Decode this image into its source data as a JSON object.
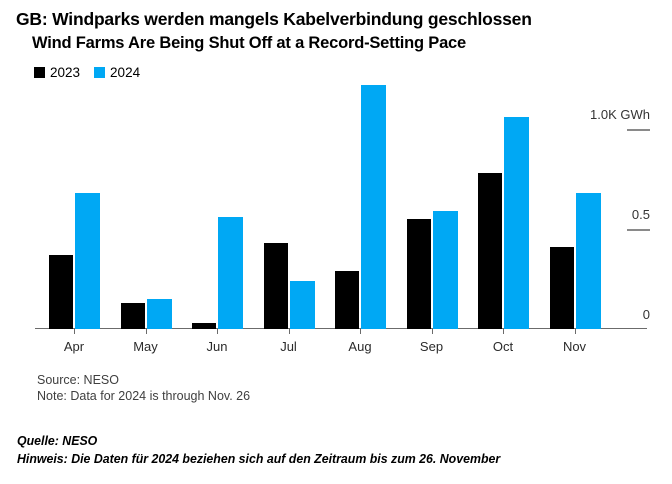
{
  "chart_data": {
    "type": "bar",
    "title": "GB: Windparks werden mangels Kabelverbindung geschlossen",
    "subtitle": "Wind Farms Are Being Shut Off at a Record-Setting Pace",
    "categories": [
      "Apr",
      "May",
      "Jun",
      "Jul",
      "Aug",
      "Sep",
      "Oct",
      "Nov"
    ],
    "series": [
      {
        "name": "2023",
        "color": "#000000",
        "values": [
          0.37,
          0.13,
          0.03,
          0.43,
          0.29,
          0.55,
          0.78,
          0.41
        ]
      },
      {
        "name": "2024",
        "color": "#00a8f4",
        "values": [
          0.68,
          0.15,
          0.56,
          0.24,
          1.22,
          0.59,
          1.06,
          0.68
        ]
      }
    ],
    "unit": "K GWh",
    "ylabel": "",
    "xlabel": "",
    "ylim": [
      0,
      1.25
    ],
    "y_ticks": [
      {
        "label": "1.0K GWh",
        "value": 1.0
      },
      {
        "label": "0.5",
        "value": 0.5
      },
      {
        "label": "0",
        "value": 0
      }
    ],
    "legend_position": "top-left",
    "grid": false,
    "axis_side": "right"
  },
  "notes": {
    "source": "Source: NESO",
    "note": "Note: Data for 2024 is through Nov. 26",
    "quelle": "Quelle: NESO",
    "hinweis": "Hinweis: Die Daten für 2024 beziehen sich auf den Zeitraum bis zum 26. November"
  },
  "colors": {
    "series_2023": "#000000",
    "series_2024": "#00a8f4",
    "axis": "#6b6b6b",
    "tick_dash": "#8a8a8a",
    "muted_text": "#3f3f3f"
  }
}
